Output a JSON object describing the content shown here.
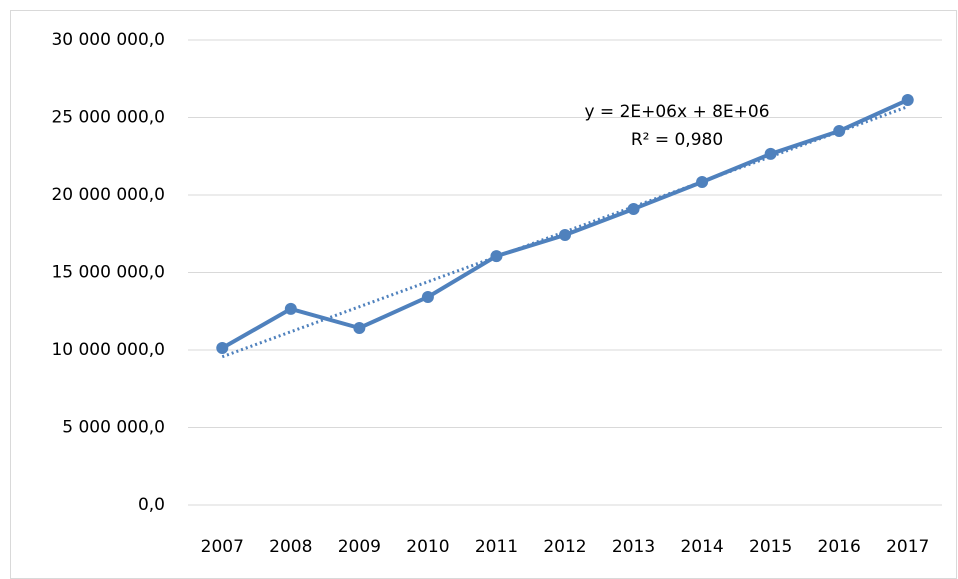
{
  "chart_data": {
    "type": "line",
    "categories": [
      "2007",
      "2008",
      "2009",
      "2010",
      "2011",
      "2012",
      "2013",
      "2014",
      "2015",
      "2016",
      "2017"
    ],
    "series": [
      {
        "color": "#4f81bd",
        "values": [
          10130000,
          12650000,
          11420000,
          13420000,
          16060000,
          17420000,
          19100000,
          20840000,
          22650000,
          24130000,
          26130000
        ]
      }
    ],
    "trendline": {
      "kind": "linear",
      "style": "dotted"
    },
    "annotations": [
      "y = 2E+06x + 8E+06",
      "R² = 0,980"
    ],
    "ylim": [
      0,
      30000000
    ],
    "yticks": [
      {
        "value": 0,
        "label": "0,0"
      },
      {
        "value": 5000000,
        "label": "5 000 000,0"
      },
      {
        "value": 10000000,
        "label": "10 000 000,0"
      },
      {
        "value": 15000000,
        "label": "15 000 000,0"
      },
      {
        "value": 20000000,
        "label": "20 000 000,0"
      },
      {
        "value": 25000000,
        "label": "25 000 000,0"
      },
      {
        "value": 30000000,
        "label": "30 000 000,0"
      }
    ],
    "grid": true
  }
}
